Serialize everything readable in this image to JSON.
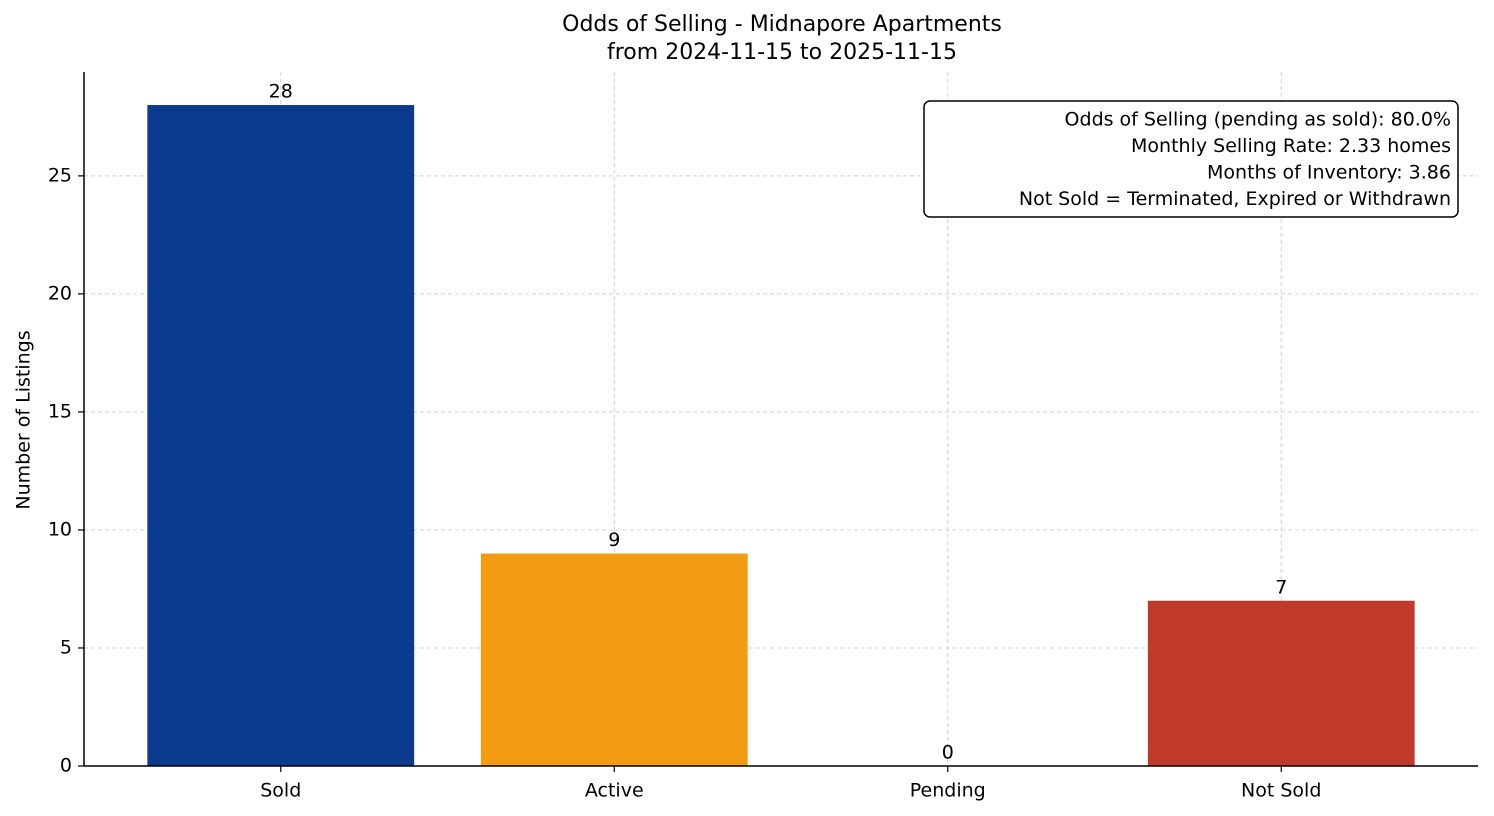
{
  "chart_data": {
    "type": "bar",
    "title": "Odds of Selling - Midnapore Apartments",
    "subtitle": "from 2024-11-15 to 2025-11-15",
    "y_label": "Number of Listings",
    "categories": [
      "Sold",
      "Active",
      "Pending",
      "Not Sold"
    ],
    "values": [
      28,
      9,
      0,
      7
    ],
    "colors": [
      "#0b3a8f",
      "#f39c12",
      null,
      "#c0392b"
    ],
    "ylim": [
      0,
      29.4
    ],
    "yticks": [
      0,
      5,
      10,
      15,
      20,
      25
    ],
    "grid": true,
    "annotations": [
      "Odds of Selling (pending as sold): 80.0%",
      "Monthly Selling Rate: 2.33 homes",
      "Months of Inventory: 3.86",
      "Not Sold = Terminated, Expired or Withdrawn"
    ]
  }
}
